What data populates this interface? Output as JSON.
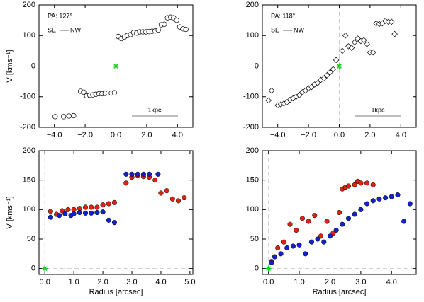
{
  "chart_data": [
    {
      "type": "scatter",
      "ylabel": "V [kms⁻¹]",
      "pa_label": "PA: 127°",
      "scale_left": "SE",
      "scale_right": "NW",
      "scale_label": "1kpc",
      "xlim": [
        -5,
        5
      ],
      "ylim": [
        -200,
        200
      ],
      "zero_lines": true,
      "xticks": [
        {
          "value": -4,
          "label": "−4.0"
        },
        {
          "value": -2,
          "label": "−2.0"
        },
        {
          "value": 0,
          "label": "0.0"
        },
        {
          "value": 2,
          "label": "2.0"
        },
        {
          "value": 4,
          "label": "4.0"
        }
      ],
      "yticks": [
        -200,
        -100,
        0,
        100,
        200
      ],
      "series": [
        {
          "marker": "circle",
          "filled": false,
          "color": "#000000",
          "x": [
            -3.95,
            -3.4,
            -3.05,
            -2.75,
            -2.3,
            -2.1,
            -1.9,
            -1.7,
            -1.5,
            -1.3,
            -1.1,
            -0.9,
            -0.7,
            -0.5,
            -0.3,
            -0.1,
            0.15,
            0.35,
            0.55,
            0.75,
            0.95,
            1.15,
            1.35,
            1.55,
            1.75,
            1.95,
            2.15,
            2.35,
            2.55,
            2.75,
            2.95,
            3.15,
            3.35,
            3.55,
            3.75,
            3.95,
            4.15,
            4.35,
            4.55
          ],
          "values": [
            -165,
            -165,
            -163,
            -162,
            -82,
            -85,
            -97,
            -95,
            -94,
            -92,
            -90,
            -90,
            -89,
            -88,
            -88,
            -87,
            97,
            90,
            95,
            100,
            103,
            110,
            108,
            112,
            112,
            112,
            113,
            114,
            115,
            118,
            135,
            137,
            158,
            160,
            158,
            150,
            128,
            122,
            120
          ]
        },
        {
          "marker": "star",
          "color": "#22cc22",
          "x": [
            0
          ],
          "values": [
            0
          ]
        }
      ]
    },
    {
      "type": "scatter",
      "pa_label": "PA: 118°",
      "scale_left": "SE",
      "scale_right": "NW",
      "scale_label": "1kpc",
      "xlim": [
        -5,
        5
      ],
      "ylim": [
        -200,
        200
      ],
      "zero_lines": true,
      "xticks": [
        {
          "value": -4,
          "label": "−4.0"
        },
        {
          "value": -2,
          "label": "−2.0"
        },
        {
          "value": 0,
          "label": "0.0"
        },
        {
          "value": 2,
          "label": "2.0"
        },
        {
          "value": 4,
          "label": "4.0"
        }
      ],
      "yticks": [
        -200,
        -100,
        0,
        100,
        200
      ],
      "series": [
        {
          "marker": "diamond",
          "filled": false,
          "color": "#000000",
          "x": [
            -4.6,
            -4.4,
            -4.0,
            -3.8,
            -3.6,
            -3.4,
            -3.2,
            -3.0,
            -2.8,
            -2.6,
            -2.4,
            -2.2,
            -2.0,
            -1.8,
            -1.6,
            -1.4,
            -1.2,
            -1.0,
            -0.8,
            -0.6,
            -0.4,
            -0.2,
            0.2,
            0.4,
            0.6,
            0.8,
            1.0,
            1.2,
            1.4,
            1.6,
            1.8,
            2.0,
            2.2,
            2.4,
            2.6,
            2.8,
            3.0,
            3.2,
            3.4,
            3.6
          ],
          "values": [
            -112,
            -80,
            -128,
            -125,
            -122,
            -118,
            -110,
            -105,
            -100,
            -95,
            -85,
            -80,
            -72,
            -68,
            -60,
            -55,
            -45,
            -40,
            -30,
            -20,
            -10,
            20,
            50,
            100,
            65,
            60,
            78,
            90,
            82,
            85,
            72,
            45,
            45,
            140,
            138,
            140,
            148,
            145,
            145,
            105
          ]
        },
        {
          "marker": "star",
          "color": "#22cc22",
          "x": [
            0
          ],
          "values": [
            0
          ]
        }
      ]
    },
    {
      "type": "scatter",
      "ylabel": "V [kms⁻¹]",
      "xlabel": "Radius [arcsec]",
      "xlim": [
        -0.2,
        5.1
      ],
      "ylim": [
        -10,
        200
      ],
      "zero_lines": true,
      "xticks": [
        {
          "value": 0,
          "label": "0.0"
        },
        {
          "value": 1,
          "label": "1.0"
        },
        {
          "value": 2,
          "label": "2.0"
        },
        {
          "value": 3,
          "label": "3.0"
        },
        {
          "value": 4,
          "label": "4.0"
        },
        {
          "value": 5,
          "label": "5.0"
        }
      ],
      "yticks": [
        0,
        50,
        100,
        150,
        200
      ],
      "series": [
        {
          "marker": "circle",
          "filled": true,
          "color": "#dd2211",
          "x": [
            0.2,
            0.4,
            0.6,
            0.8,
            1.0,
            1.2,
            1.4,
            1.6,
            1.8,
            2.0,
            2.2,
            2.4,
            2.8,
            3.0,
            3.2,
            3.4,
            3.6,
            3.8,
            4.0,
            4.2,
            4.4,
            4.6,
            4.8
          ],
          "values": [
            97,
            92,
            98,
            100,
            100,
            102,
            104,
            104,
            104,
            108,
            110,
            112,
            145,
            155,
            158,
            156,
            155,
            150,
            128,
            132,
            118,
            115,
            120
          ]
        },
        {
          "marker": "circle",
          "filled": true,
          "color": "#1122cc",
          "x": [
            0.2,
            0.5,
            0.7,
            0.9,
            1.0,
            1.2,
            1.4,
            1.6,
            1.8,
            2.0,
            2.2,
            2.4,
            2.8,
            3.0,
            3.2,
            3.4,
            3.6,
            3.9
          ],
          "values": [
            87,
            90,
            93,
            90,
            93,
            95,
            94,
            94,
            95,
            96,
            82,
            78,
            160,
            160,
            160,
            160,
            160,
            160
          ]
        },
        {
          "marker": "star",
          "color": "#22cc22",
          "x": [
            0
          ],
          "values": [
            0
          ]
        }
      ]
    },
    {
      "type": "scatter",
      "xlabel": "Radius [arcsec]",
      "xlim": [
        -0.2,
        4.8
      ],
      "ylim": [
        -10,
        200
      ],
      "zero_lines": true,
      "xticks": [
        {
          "value": 0,
          "label": "0.0"
        },
        {
          "value": 1,
          "label": "1.0"
        },
        {
          "value": 2,
          "label": "2.0"
        },
        {
          "value": 3,
          "label": "3.0"
        },
        {
          "value": 4,
          "label": "4.0"
        }
      ],
      "yticks": [
        0,
        50,
        100,
        150,
        200
      ],
      "series": [
        {
          "marker": "circle",
          "filled": true,
          "color": "#dd2211",
          "x": [
            0.1,
            0.3,
            0.5,
            0.7,
            0.9,
            1.1,
            1.3,
            1.5,
            1.7,
            1.9,
            2.1,
            2.3,
            2.4,
            2.5,
            2.6,
            2.8,
            2.9,
            3.0,
            3.2,
            3.4
          ],
          "values": [
            12,
            35,
            45,
            75,
            65,
            85,
            80,
            90,
            55,
            80,
            60,
            95,
            135,
            138,
            140,
            142,
            148,
            145,
            145,
            142
          ]
        },
        {
          "marker": "circle",
          "filled": true,
          "color": "#1122cc",
          "x": [
            0.1,
            0.2,
            0.4,
            0.6,
            0.8,
            1.0,
            1.2,
            1.4,
            1.6,
            1.8,
            2.0,
            2.2,
            2.4,
            2.6,
            2.8,
            3.0,
            3.2,
            3.4,
            3.6,
            3.8,
            4.0,
            4.2,
            4.4,
            4.6
          ],
          "values": [
            10,
            20,
            25,
            35,
            38,
            40,
            25,
            45,
            50,
            45,
            55,
            65,
            75,
            85,
            92,
            100,
            110,
            115,
            118,
            120,
            122,
            125,
            80,
            110
          ]
        },
        {
          "marker": "star",
          "color": "#22cc22",
          "x": [
            0
          ],
          "values": [
            0
          ]
        }
      ]
    }
  ]
}
